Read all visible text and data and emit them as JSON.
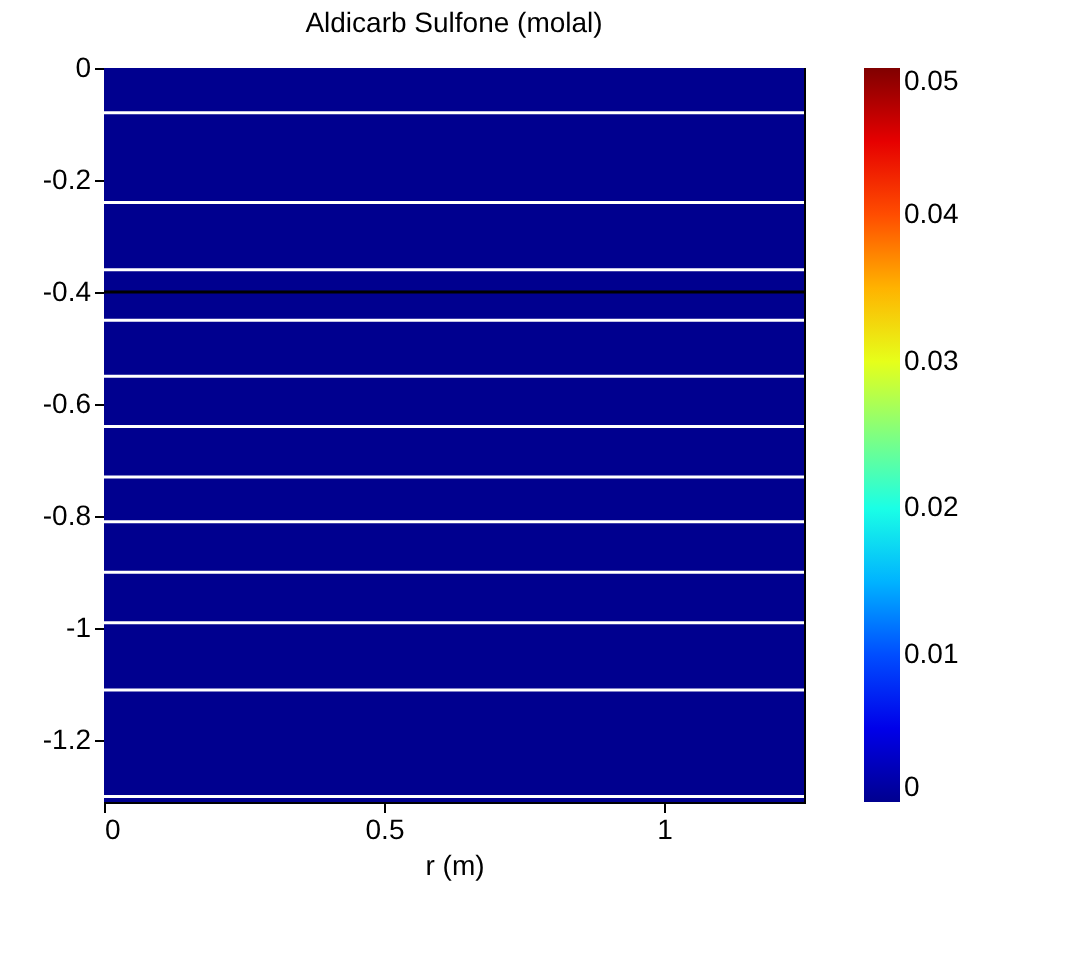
{
  "chart_data": {
    "type": "heatmap",
    "title": "Aldicarb Sulfone (molal)",
    "xlabel": "r (m)",
    "cells": [
      [
        0
      ]
    ],
    "xlim": [
      0,
      1.25
    ],
    "xticks": [
      0,
      0.5,
      1
    ],
    "ylim": [
      -1.31,
      0
    ],
    "yticks": [
      -1.2,
      -1,
      -0.8,
      -0.6,
      -0.4,
      -0.2,
      0
    ],
    "clim": [
      0,
      0.05
    ],
    "cticks": [
      0,
      0.01,
      0.02,
      0.03,
      0.04,
      0.05
    ],
    "ref_lines": [
      {
        "axis": "y",
        "value": -0.08,
        "color": "#ffffff"
      },
      {
        "axis": "y",
        "value": -0.24,
        "color": "#ffffff"
      },
      {
        "axis": "y",
        "value": -0.36,
        "color": "#ffffff"
      },
      {
        "axis": "y",
        "value": -0.4,
        "color": "#000000"
      },
      {
        "axis": "y",
        "value": -0.45,
        "color": "#ffffff"
      },
      {
        "axis": "y",
        "value": -0.55,
        "color": "#ffffff"
      },
      {
        "axis": "y",
        "value": -0.64,
        "color": "#ffffff"
      },
      {
        "axis": "y",
        "value": -0.73,
        "color": "#ffffff"
      },
      {
        "axis": "y",
        "value": -0.81,
        "color": "#ffffff"
      },
      {
        "axis": "y",
        "value": -0.9,
        "color": "#ffffff"
      },
      {
        "axis": "y",
        "value": -0.99,
        "color": "#ffffff"
      },
      {
        "axis": "y",
        "value": -1.11,
        "color": "#ffffff"
      },
      {
        "axis": "y",
        "value": -1.3,
        "color": "#ffffff"
      }
    ]
  }
}
